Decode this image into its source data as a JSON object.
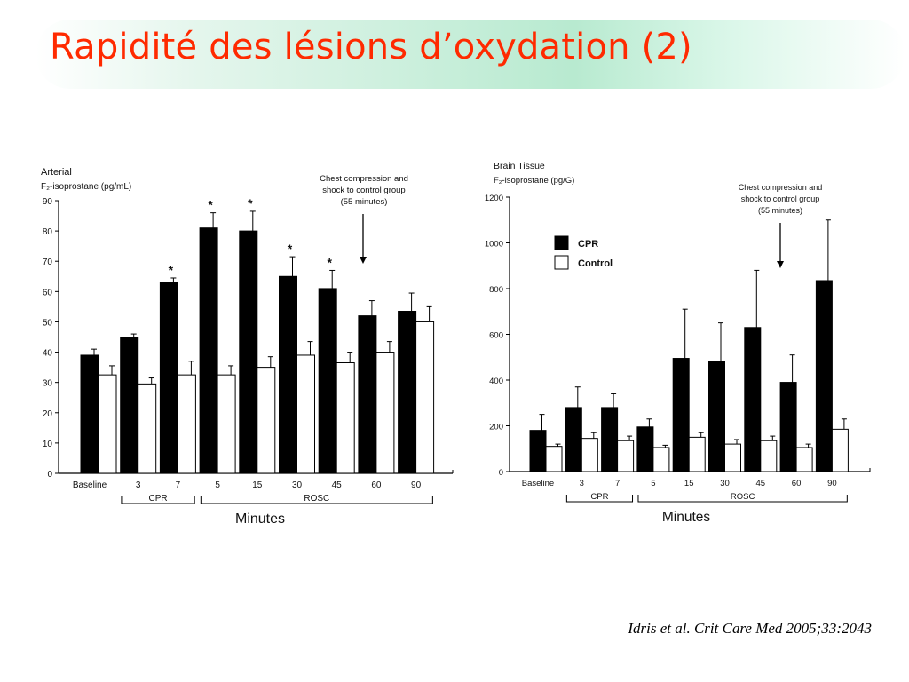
{
  "slide": {
    "title": "Rapidité des lésions d’oxydation (2)",
    "title_color": "#ff2a00",
    "band_color": "#b8ead0",
    "citation": "Idris et al. Crit Care Med 2005;33:2043"
  },
  "chart_data": [
    {
      "type": "bar",
      "ylabel_line1": "Arterial",
      "ylabel_line2": "F₂-isoprostane (pg/mL)",
      "xlabel": "Minutes",
      "categories": [
        "Baseline",
        "3",
        "7",
        "5",
        "15",
        "30",
        "45",
        "60",
        "90"
      ],
      "groups": [
        {
          "label": "CPR",
          "from": 1,
          "to": 2
        },
        {
          "label": "ROSC",
          "from": 3,
          "to": 8
        }
      ],
      "ylim": [
        0,
        90
      ],
      "yticks": [
        0,
        10,
        20,
        30,
        40,
        50,
        60,
        70,
        80,
        90
      ],
      "series": [
        {
          "values": [
            39,
            45,
            63,
            81,
            80,
            65,
            61,
            52,
            53.5
          ],
          "errors": [
            2,
            1,
            1.5,
            5,
            6.5,
            6.5,
            6,
            5,
            6
          ],
          "color": "#000000"
        },
        {
          "values": [
            32.5,
            29.5,
            32.5,
            32.5,
            35,
            39,
            36.5,
            40,
            50
          ],
          "errors": [
            3,
            2,
            4.5,
            3,
            3.5,
            4.5,
            3.5,
            3.5,
            5
          ],
          "color": "#ffffff"
        }
      ],
      "significance": [
        "",
        "",
        "*",
        "*",
        "*",
        "*",
        "*",
        "",
        ""
      ],
      "annotation": [
        "Chest compression and",
        "shock to control group",
        "(55 minutes)"
      ],
      "annotation_arrow_category": 6
    },
    {
      "type": "bar",
      "ylabel_line1": "Brain Tissue",
      "ylabel_line2": "F₂-isoprostane (pg/G)",
      "xlabel": "Minutes",
      "categories": [
        "Baseline",
        "3",
        "7",
        "5",
        "15",
        "30",
        "45",
        "60",
        "90"
      ],
      "groups": [
        {
          "label": "CPR",
          "from": 1,
          "to": 2
        },
        {
          "label": "ROSC",
          "from": 3,
          "to": 8
        }
      ],
      "ylim": [
        0,
        1200
      ],
      "yticks": [
        0,
        200,
        400,
        600,
        800,
        1000,
        1200
      ],
      "series": [
        {
          "name": "CPR",
          "values": [
            180,
            280,
            280,
            195,
            495,
            480,
            630,
            390,
            835
          ],
          "errors": [
            70,
            90,
            60,
            35,
            215,
            170,
            250,
            120,
            265
          ],
          "color": "#000000"
        },
        {
          "name": "Control",
          "values": [
            110,
            145,
            135,
            105,
            150,
            120,
            135,
            105,
            185
          ],
          "errors": [
            10,
            25,
            20,
            10,
            20,
            20,
            20,
            15,
            45
          ],
          "color": "#ffffff"
        }
      ],
      "legend": [
        "CPR",
        "Control"
      ],
      "legend_position": "top-left",
      "annotation": [
        "Chest compression and",
        "shock to control group",
        "(55 minutes)"
      ],
      "annotation_arrow_category": 6
    }
  ]
}
